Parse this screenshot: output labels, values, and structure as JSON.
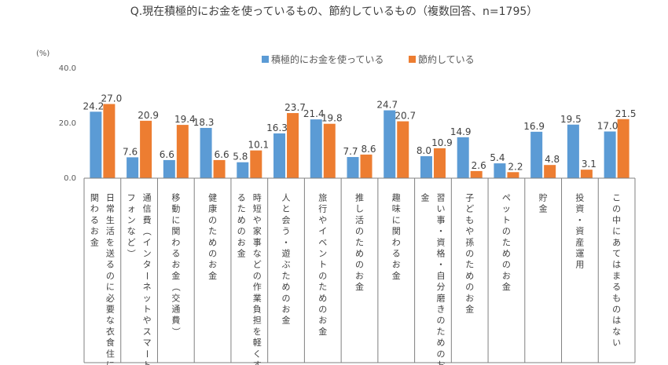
{
  "chart_data": {
    "type": "bar",
    "title": "Q.現在積極的にお金を使っているもの、節約しているもの（複数回答、n=1795）",
    "unit_label": "(%)",
    "ylim": [
      0,
      40
    ],
    "yticks": [
      "40.0",
      "20.0",
      "0.0"
    ],
    "ytick_values": [
      40,
      20,
      0
    ],
    "legend_position": "top",
    "colors": {
      "active": "#5B9BD5",
      "saving": "#ED7D31"
    },
    "categories": [
      "日常生活を送るのに必要な衣食住に関わるお金",
      "通信費（インターネットやスマートフォンなど）",
      "移動に関わるお金（交通費）",
      "健康のためのお金",
      "時短や家事などの作業負担を軽くするためのお金",
      "人と会う・遊ぶためのお金",
      "旅行やイベントのためのお金",
      "推し活のためのお金",
      "趣味に関わるお金",
      "習い事・資格・自分磨きのためのお金",
      "子どもや孫のためのお金",
      "ペットのためのお金",
      "貯金",
      "投資・資産運用",
      "この中にあてはまるものはない"
    ],
    "series": [
      {
        "name": "積極的にお金を使っている",
        "values": [
          24.2,
          7.6,
          6.6,
          18.3,
          5.8,
          16.3,
          21.4,
          7.7,
          24.7,
          8.0,
          14.9,
          5.4,
          16.9,
          19.5,
          17.0
        ],
        "labels": [
          "24.2",
          "7.6",
          "6.6",
          "18.3",
          "5.8",
          "16.3",
          "21.4",
          "7.7",
          "24.7",
          "8.0",
          "14.9",
          "5.4",
          "16.9",
          "19.5",
          "17.0"
        ]
      },
      {
        "name": "節約している",
        "values": [
          27.0,
          20.9,
          19.4,
          6.6,
          10.1,
          23.7,
          19.8,
          8.6,
          20.7,
          10.9,
          2.6,
          2.2,
          4.8,
          3.1,
          21.5
        ],
        "labels": [
          "27.0",
          "20.9",
          "19.4",
          "6.6",
          "10.1",
          "23.7",
          "19.8",
          "8.6",
          "20.7",
          "10.9",
          "2.6",
          "2.2",
          "4.8",
          "3.1",
          "21.5"
        ]
      }
    ]
  }
}
